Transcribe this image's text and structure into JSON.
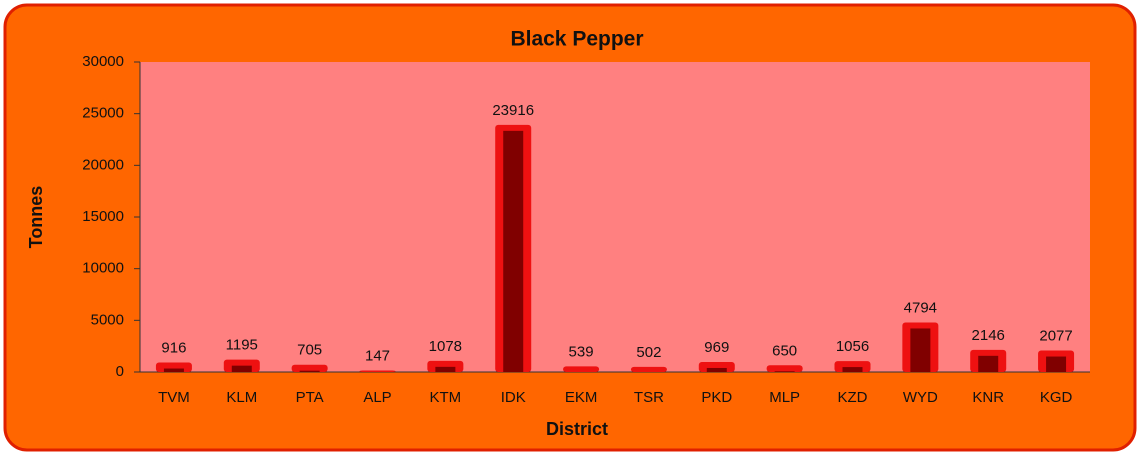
{
  "chart_data": {
    "type": "bar",
    "title": "Black Pepper",
    "x_label": "District",
    "y_label": "Tonnes",
    "categories": [
      "TVM",
      "KLM",
      "PTA",
      "ALP",
      "KTM",
      "IDK",
      "EKM",
      "TSR",
      "PKD",
      "MLP",
      "KZD",
      "WYD",
      "KNR",
      "KGD"
    ],
    "values": [
      916,
      1195,
      705,
      147,
      1078,
      23916,
      539,
      502,
      969,
      650,
      1056,
      4794,
      2146,
      2077
    ],
    "color": "#ee1111",
    "ylim": [
      0,
      30000
    ],
    "yticks": [
      0,
      5000,
      10000,
      15000,
      20000,
      25000,
      30000
    ],
    "grid": false
  }
}
